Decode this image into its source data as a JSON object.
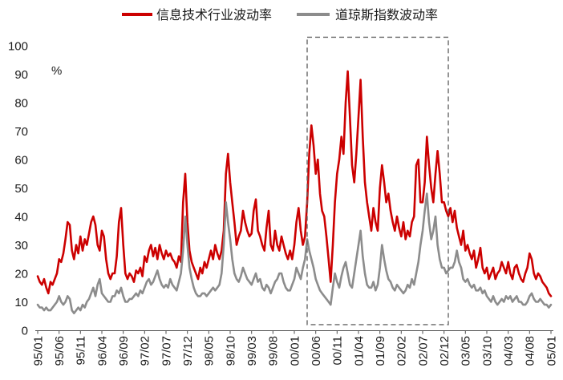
{
  "chart_data": {
    "type": "line",
    "legend_position": "top",
    "grid": false,
    "ylabel": "%",
    "ylim": [
      0,
      100
    ],
    "y_ticks": [
      0,
      10,
      20,
      30,
      40,
      50,
      60,
      70,
      80,
      90,
      100
    ],
    "xlim": [
      "1995-01-01",
      "2005-01-01"
    ],
    "x_tick_labels": [
      "95/01",
      "95/06",
      "95/11",
      "96/04",
      "96/09",
      "97/02",
      "97/07",
      "97/12",
      "98/05",
      "98/10",
      "99/03",
      "99/08",
      "00/01",
      "00/06",
      "00/11",
      "01/04",
      "01/09",
      "02/02",
      "02/07",
      "02/12",
      "03/05",
      "03/10",
      "04/03",
      "04/08",
      "05/01"
    ],
    "highlight_box": {
      "x": [
        "2000-04-01",
        "2003-01-01"
      ],
      "y": [
        2,
        103
      ]
    },
    "x": [
      "1995-01-01",
      "1995-01-16",
      "1995-02-01",
      "1995-02-16",
      "1995-03-01",
      "1995-03-16",
      "1995-04-01",
      "1995-04-16",
      "1995-05-01",
      "1995-05-16",
      "1995-06-01",
      "1995-06-16",
      "1995-07-01",
      "1995-07-16",
      "1995-08-01",
      "1995-08-16",
      "1995-09-01",
      "1995-09-16",
      "1995-10-01",
      "1995-10-16",
      "1995-11-01",
      "1995-11-16",
      "1995-12-01",
      "1995-12-16",
      "1996-01-01",
      "1996-01-16",
      "1996-02-01",
      "1996-02-16",
      "1996-03-01",
      "1996-03-16",
      "1996-04-01",
      "1996-04-16",
      "1996-05-01",
      "1996-05-16",
      "1996-06-01",
      "1996-06-16",
      "1996-07-01",
      "1996-07-16",
      "1996-08-01",
      "1996-08-16",
      "1996-09-01",
      "1996-09-16",
      "1996-10-01",
      "1996-10-16",
      "1996-11-01",
      "1996-11-16",
      "1996-12-01",
      "1996-12-16",
      "1997-01-01",
      "1997-01-16",
      "1997-02-01",
      "1997-02-16",
      "1997-03-01",
      "1997-03-16",
      "1997-04-01",
      "1997-04-16",
      "1997-05-01",
      "1997-05-16",
      "1997-06-01",
      "1997-06-16",
      "1997-07-01",
      "1997-07-16",
      "1997-08-01",
      "1997-08-16",
      "1997-09-01",
      "1997-09-16",
      "1997-10-01",
      "1997-10-16",
      "1997-11-01",
      "1997-11-16",
      "1997-12-01",
      "1997-12-16",
      "1998-01-01",
      "1998-01-16",
      "1998-02-01",
      "1998-02-16",
      "1998-03-01",
      "1998-03-16",
      "1998-04-01",
      "1998-04-16",
      "1998-05-01",
      "1998-05-16",
      "1998-06-01",
      "1998-06-16",
      "1998-07-01",
      "1998-07-16",
      "1998-08-01",
      "1998-08-16",
      "1998-09-01",
      "1998-09-16",
      "1998-10-01",
      "1998-10-16",
      "1998-11-01",
      "1998-11-16",
      "1998-12-01",
      "1998-12-16",
      "1999-01-01",
      "1999-01-16",
      "1999-02-01",
      "1999-02-16",
      "1999-03-01",
      "1999-03-16",
      "1999-04-01",
      "1999-04-16",
      "1999-05-01",
      "1999-05-16",
      "1999-06-01",
      "1999-06-16",
      "1999-07-01",
      "1999-07-16",
      "1999-08-01",
      "1999-08-16",
      "1999-09-01",
      "1999-09-16",
      "1999-10-01",
      "1999-10-16",
      "1999-11-01",
      "1999-11-16",
      "1999-12-01",
      "1999-12-16",
      "2000-01-01",
      "2000-01-16",
      "2000-02-01",
      "2000-02-16",
      "2000-03-01",
      "2000-03-16",
      "2000-04-01",
      "2000-04-16",
      "2000-05-01",
      "2000-05-16",
      "2000-06-01",
      "2000-06-16",
      "2000-07-01",
      "2000-07-16",
      "2000-08-01",
      "2000-08-16",
      "2000-09-01",
      "2000-09-16",
      "2000-10-01",
      "2000-10-16",
      "2000-11-01",
      "2000-11-16",
      "2000-12-01",
      "2000-12-16",
      "2001-01-01",
      "2001-01-16",
      "2001-02-01",
      "2001-02-16",
      "2001-03-01",
      "2001-03-16",
      "2001-04-01",
      "2001-04-16",
      "2001-05-01",
      "2001-05-16",
      "2001-06-01",
      "2001-06-16",
      "2001-07-01",
      "2001-07-16",
      "2001-08-01",
      "2001-08-16",
      "2001-09-01",
      "2001-09-16",
      "2001-10-01",
      "2001-10-16",
      "2001-11-01",
      "2001-11-16",
      "2001-12-01",
      "2001-12-16",
      "2002-01-01",
      "2002-01-16",
      "2002-02-01",
      "2002-02-16",
      "2002-03-01",
      "2002-03-16",
      "2002-04-01",
      "2002-04-16",
      "2002-05-01",
      "2002-05-16",
      "2002-06-01",
      "2002-06-16",
      "2002-07-01",
      "2002-07-16",
      "2002-08-01",
      "2002-08-16",
      "2002-09-01",
      "2002-09-16",
      "2002-10-01",
      "2002-10-16",
      "2002-11-01",
      "2002-11-16",
      "2002-12-01",
      "2002-12-16",
      "2003-01-01",
      "2003-01-16",
      "2003-02-01",
      "2003-02-16",
      "2003-03-01",
      "2003-03-16",
      "2003-04-01",
      "2003-04-16",
      "2003-05-01",
      "2003-05-16",
      "2003-06-01",
      "2003-06-16",
      "2003-07-01",
      "2003-07-16",
      "2003-08-01",
      "2003-08-16",
      "2003-09-01",
      "2003-09-16",
      "2003-10-01",
      "2003-10-16",
      "2003-11-01",
      "2003-11-16",
      "2003-12-01",
      "2003-12-16",
      "2004-01-01",
      "2004-01-16",
      "2004-02-01",
      "2004-02-16",
      "2004-03-01",
      "2004-03-16",
      "2004-04-01",
      "2004-04-16",
      "2004-05-01",
      "2004-05-16",
      "2004-06-01",
      "2004-06-16",
      "2004-07-01",
      "2004-07-16",
      "2004-08-01",
      "2004-08-16",
      "2004-09-01",
      "2004-09-16",
      "2004-10-01",
      "2004-10-16",
      "2004-11-01",
      "2004-11-16",
      "2004-12-01",
      "2004-12-16",
      "2005-01-01"
    ],
    "series": [
      {
        "name": "信息技术行业波动率",
        "color": "#cc0000",
        "values": [
          19,
          17,
          16,
          18,
          15,
          13,
          17,
          16,
          18,
          20,
          25,
          24,
          27,
          32,
          38,
          37,
          28,
          25,
          30,
          27,
          33,
          28,
          32,
          30,
          34,
          38,
          40,
          37,
          30,
          28,
          35,
          33,
          25,
          20,
          18,
          20,
          20,
          26,
          38,
          43,
          30,
          20,
          18,
          20,
          19,
          17,
          21,
          20,
          22,
          19,
          26,
          24,
          28,
          30,
          26,
          29,
          25,
          30,
          27,
          25,
          28,
          26,
          27,
          25,
          24,
          22,
          26,
          24,
          45,
          55,
          38,
          28,
          24,
          22,
          20,
          18,
          22,
          20,
          24,
          22,
          25,
          28,
          25,
          30,
          27,
          25,
          28,
          35,
          55,
          62,
          52,
          45,
          38,
          30,
          33,
          35,
          42,
          38,
          35,
          33,
          34,
          42,
          46,
          35,
          33,
          30,
          28,
          36,
          42,
          30,
          28,
          35,
          30,
          28,
          33,
          30,
          27,
          25,
          28,
          25,
          30,
          38,
          43,
          35,
          30,
          33,
          45,
          62,
          72,
          65,
          55,
          60,
          48,
          42,
          40,
          33,
          25,
          17,
          30,
          45,
          55,
          60,
          68,
          62,
          80,
          91,
          75,
          58,
          52,
          62,
          75,
          88,
          68,
          52,
          45,
          40,
          35,
          43,
          38,
          35,
          50,
          58,
          52,
          45,
          48,
          42,
          38,
          35,
          40,
          36,
          33,
          38,
          32,
          35,
          33,
          38,
          40,
          58,
          60,
          45,
          45,
          52,
          68,
          58,
          50,
          45,
          55,
          63,
          55,
          45,
          45,
          42,
          40,
          43,
          38,
          42,
          36,
          33,
          30,
          35,
          28,
          30,
          27,
          25,
          28,
          22,
          25,
          29,
          22,
          20,
          22,
          18,
          20,
          22,
          18,
          20,
          21,
          24,
          22,
          20,
          24,
          20,
          18,
          22,
          23,
          20,
          18,
          17,
          20,
          22,
          27,
          25,
          20,
          18,
          20,
          19,
          17,
          16,
          15,
          13,
          12
        ]
      },
      {
        "name": "道琼斯指数波动率",
        "color": "#8c8c8c",
        "values": [
          9,
          8,
          8,
          7,
          8,
          7,
          7,
          8,
          9,
          10,
          12,
          10,
          9,
          10,
          12,
          11,
          7,
          6,
          7,
          8,
          7,
          9,
          8,
          10,
          11,
          13,
          15,
          12,
          16,
          18,
          13,
          12,
          11,
          10,
          10,
          12,
          12,
          14,
          13,
          15,
          12,
          10,
          10,
          11,
          11,
          12,
          13,
          12,
          14,
          13,
          15,
          17,
          18,
          16,
          17,
          19,
          21,
          18,
          16,
          15,
          16,
          15,
          18,
          16,
          15,
          14,
          17,
          20,
          28,
          40,
          30,
          22,
          18,
          15,
          13,
          12,
          12,
          13,
          13,
          12,
          13,
          14,
          15,
          14,
          15,
          16,
          20,
          30,
          45,
          38,
          32,
          25,
          20,
          18,
          17,
          19,
          22,
          20,
          18,
          17,
          16,
          18,
          20,
          17,
          18,
          15,
          14,
          16,
          15,
          13,
          15,
          17,
          18,
          20,
          20,
          17,
          15,
          14,
          14,
          16,
          18,
          22,
          20,
          18,
          22,
          25,
          32,
          28,
          25,
          22,
          18,
          16,
          14,
          13,
          12,
          11,
          10,
          9,
          15,
          20,
          17,
          15,
          19,
          22,
          24,
          20,
          16,
          15,
          20,
          25,
          30,
          35,
          26,
          20,
          16,
          15,
          15,
          17,
          14,
          16,
          22,
          30,
          25,
          21,
          18,
          17,
          15,
          14,
          16,
          15,
          14,
          13,
          14,
          16,
          15,
          18,
          16,
          20,
          24,
          30,
          35,
          42,
          48,
          38,
          32,
          35,
          40,
          30,
          25,
          22,
          22,
          20,
          21,
          22,
          22,
          24,
          28,
          24,
          22,
          18,
          17,
          18,
          16,
          15,
          16,
          14,
          14,
          15,
          13,
          14,
          12,
          11,
          10,
          12,
          10,
          9,
          10,
          11,
          10,
          12,
          11,
          12,
          10,
          11,
          12,
          10,
          10,
          9,
          9,
          10,
          12,
          13,
          11,
          10,
          10,
          11,
          10,
          9,
          9,
          8,
          9
        ]
      }
    ]
  }
}
